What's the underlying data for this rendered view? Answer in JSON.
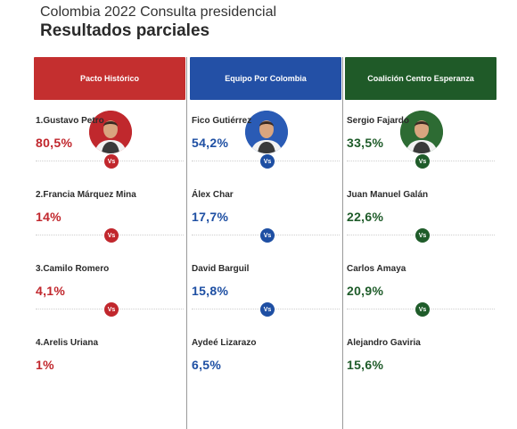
{
  "header": {
    "supertitle": "Colombia 2022 Consulta presidencial",
    "title": "Resultados parciales"
  },
  "vs_label": "Vs",
  "columns": [
    {
      "party": "Pacto Histórico",
      "color": "#c1272d",
      "header_bg": "#c42f2f",
      "avatar_bg": "#c0282d",
      "avatar_icon": "candidate-photo-petro",
      "candidates": [
        {
          "name": "1.Gustavo Petro",
          "pct": "80,5%"
        },
        {
          "name": "2.Francia Márquez Mina",
          "pct": "14%"
        },
        {
          "name": "3.Camilo Romero",
          "pct": "4,1%"
        },
        {
          "name": "4.Arelis Uriana",
          "pct": "1%"
        }
      ]
    },
    {
      "party": "Equipo Por Colombia",
      "color": "#1e4fa3",
      "header_bg": "#2350a6",
      "avatar_bg": "#2a5bb5",
      "avatar_icon": "candidate-photo-gutierrez",
      "candidates": [
        {
          "name": "Fico Gutiérrez",
          "pct": "54,2%"
        },
        {
          "name": "Álex Char",
          "pct": "17,7%"
        },
        {
          "name": "David Barguil",
          "pct": "15,8%"
        },
        {
          "name": "Aydeé Lizarazo",
          "pct": "6,5%"
        }
      ]
    },
    {
      "party": "Coalición Centro Esperanza",
      "color": "#1f5c2a",
      "header_bg": "#1f5a28",
      "avatar_bg": "#2d6b33",
      "avatar_icon": "candidate-photo-fajardo",
      "candidates": [
        {
          "name": "Sergio Fajardo",
          "pct": "33,5%"
        },
        {
          "name": "Juan Manuel Galán",
          "pct": "22,6%"
        },
        {
          "name": "Carlos Amaya",
          "pct": "20,9%"
        },
        {
          "name": "Alejandro Gaviria",
          "pct": "15,6%"
        }
      ]
    }
  ]
}
